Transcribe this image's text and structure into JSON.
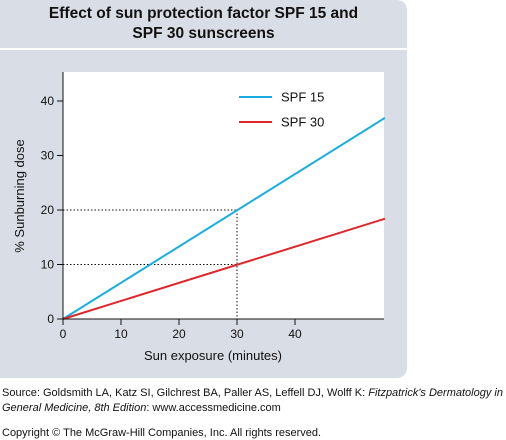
{
  "chart_data": {
    "type": "line",
    "title": "Effect of sun protection factor SPF 15 and SPF 30 sunscreens",
    "title_lines": [
      "Effect of sun protection factor SPF 15 and",
      "SPF 30 sunscreens"
    ],
    "xlabel": "Sun exposure (minutes)",
    "ylabel": "% Sunburning dose",
    "xlim": [
      0,
      55
    ],
    "ylim": [
      0,
      47
    ],
    "xticks": [
      0,
      10,
      20,
      30,
      40
    ],
    "yticks": [
      0,
      10,
      20,
      30,
      40
    ],
    "grid": false,
    "legend_position": "top-right",
    "series": [
      {
        "name": "SPF 15",
        "color": "#1aaee0",
        "x": [
          0,
          55.5
        ],
        "y": [
          0,
          36.9
        ]
      },
      {
        "name": "SPF 30",
        "color": "#e0262a",
        "x": [
          0,
          55.5
        ],
        "y": [
          0,
          18.4
        ]
      }
    ],
    "reference_lines": [
      {
        "x": 30,
        "y": 20
      },
      {
        "x": 30,
        "y": 10
      }
    ]
  },
  "footer": {
    "source_prefix": "Source: Goldsmith LA, Katz SI, Gilchrest BA, Paller AS, Leffell DJ, Wolff K: ",
    "source_italic": "Fitzpatrick's Dermatology in General Medicine, 8th Edition",
    "source_suffix": ": www.accessmedicine.com",
    "copyright": "Copyright © The McGraw-Hill Companies, Inc. All rights reserved."
  }
}
